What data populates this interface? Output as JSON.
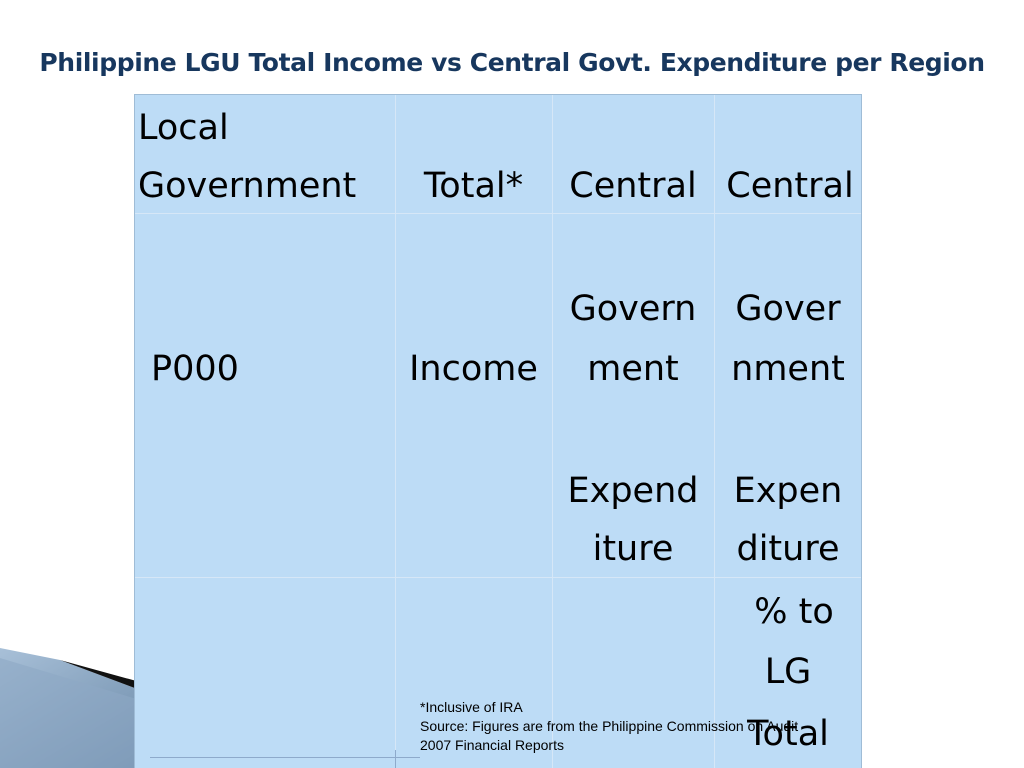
{
  "title": "Philippine LGU Total Income vs Central Govt. Expenditure per Region",
  "table": {
    "col1": {
      "header_line1": "Local",
      "header_line2": "Government",
      "subheader": "P000"
    },
    "col2": {
      "header": "Total*",
      "subheader": "Income"
    },
    "col3": {
      "header": "Central",
      "line1": "Govern",
      "line2": "ment",
      "line3": "Expend",
      "line4": "iture"
    },
    "col4": {
      "header": "Central",
      "line1": "Gover",
      "line2": "nment",
      "line3": "Expen",
      "line4": "diture",
      "line5": "% to",
      "line6": "LG",
      "line7": "Total"
    }
  },
  "footnote": {
    "line1": "*Inclusive  of IRA",
    "line2": "Source: Figures are from the Philippine Commission on Audit",
    "line3": "2007 Financial Reports"
  },
  "colors": {
    "title": "#17375e",
    "table_bg": "#bddcf6"
  }
}
